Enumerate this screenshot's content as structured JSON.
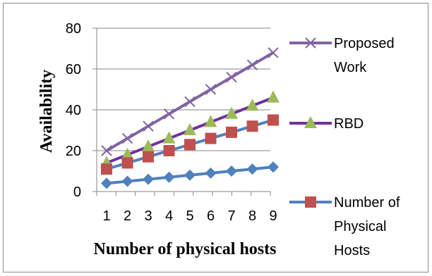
{
  "chart_data": {
    "type": "line",
    "title": "",
    "xlabel": "Number of physical hosts",
    "ylabel": "Availability",
    "x": [
      1,
      2,
      3,
      4,
      5,
      6,
      7,
      8,
      9
    ],
    "ylim": [
      0,
      80
    ],
    "yticks": [
      0,
      20,
      40,
      60,
      80
    ],
    "grid": "horizontal",
    "legend_position": "right",
    "series": [
      {
        "name_lines": [
          "Proposed",
          "Work"
        ],
        "color": "#8064a2",
        "marker": "x",
        "values": [
          20,
          26,
          32,
          38,
          44,
          50,
          56,
          62,
          68
        ]
      },
      {
        "name_lines": [
          "RBD"
        ],
        "color": "#7030a0",
        "marker_color": "#9bbb59",
        "marker": "triangle",
        "values": [
          14,
          18,
          22,
          26,
          30,
          34,
          38,
          42,
          46
        ]
      },
      {
        "name_lines": [
          "Number of",
          "Physical",
          "Hosts"
        ],
        "color": "#4f81bd",
        "marker_color": "#c0504d",
        "marker": "square",
        "values": [
          11,
          14,
          17,
          20,
          23,
          26,
          29,
          32,
          35
        ]
      },
      {
        "name_lines": [],
        "color": "#4f81bd",
        "marker": "diamond",
        "values": [
          4,
          5,
          6,
          7,
          8,
          9,
          10,
          11,
          12
        ]
      }
    ]
  }
}
